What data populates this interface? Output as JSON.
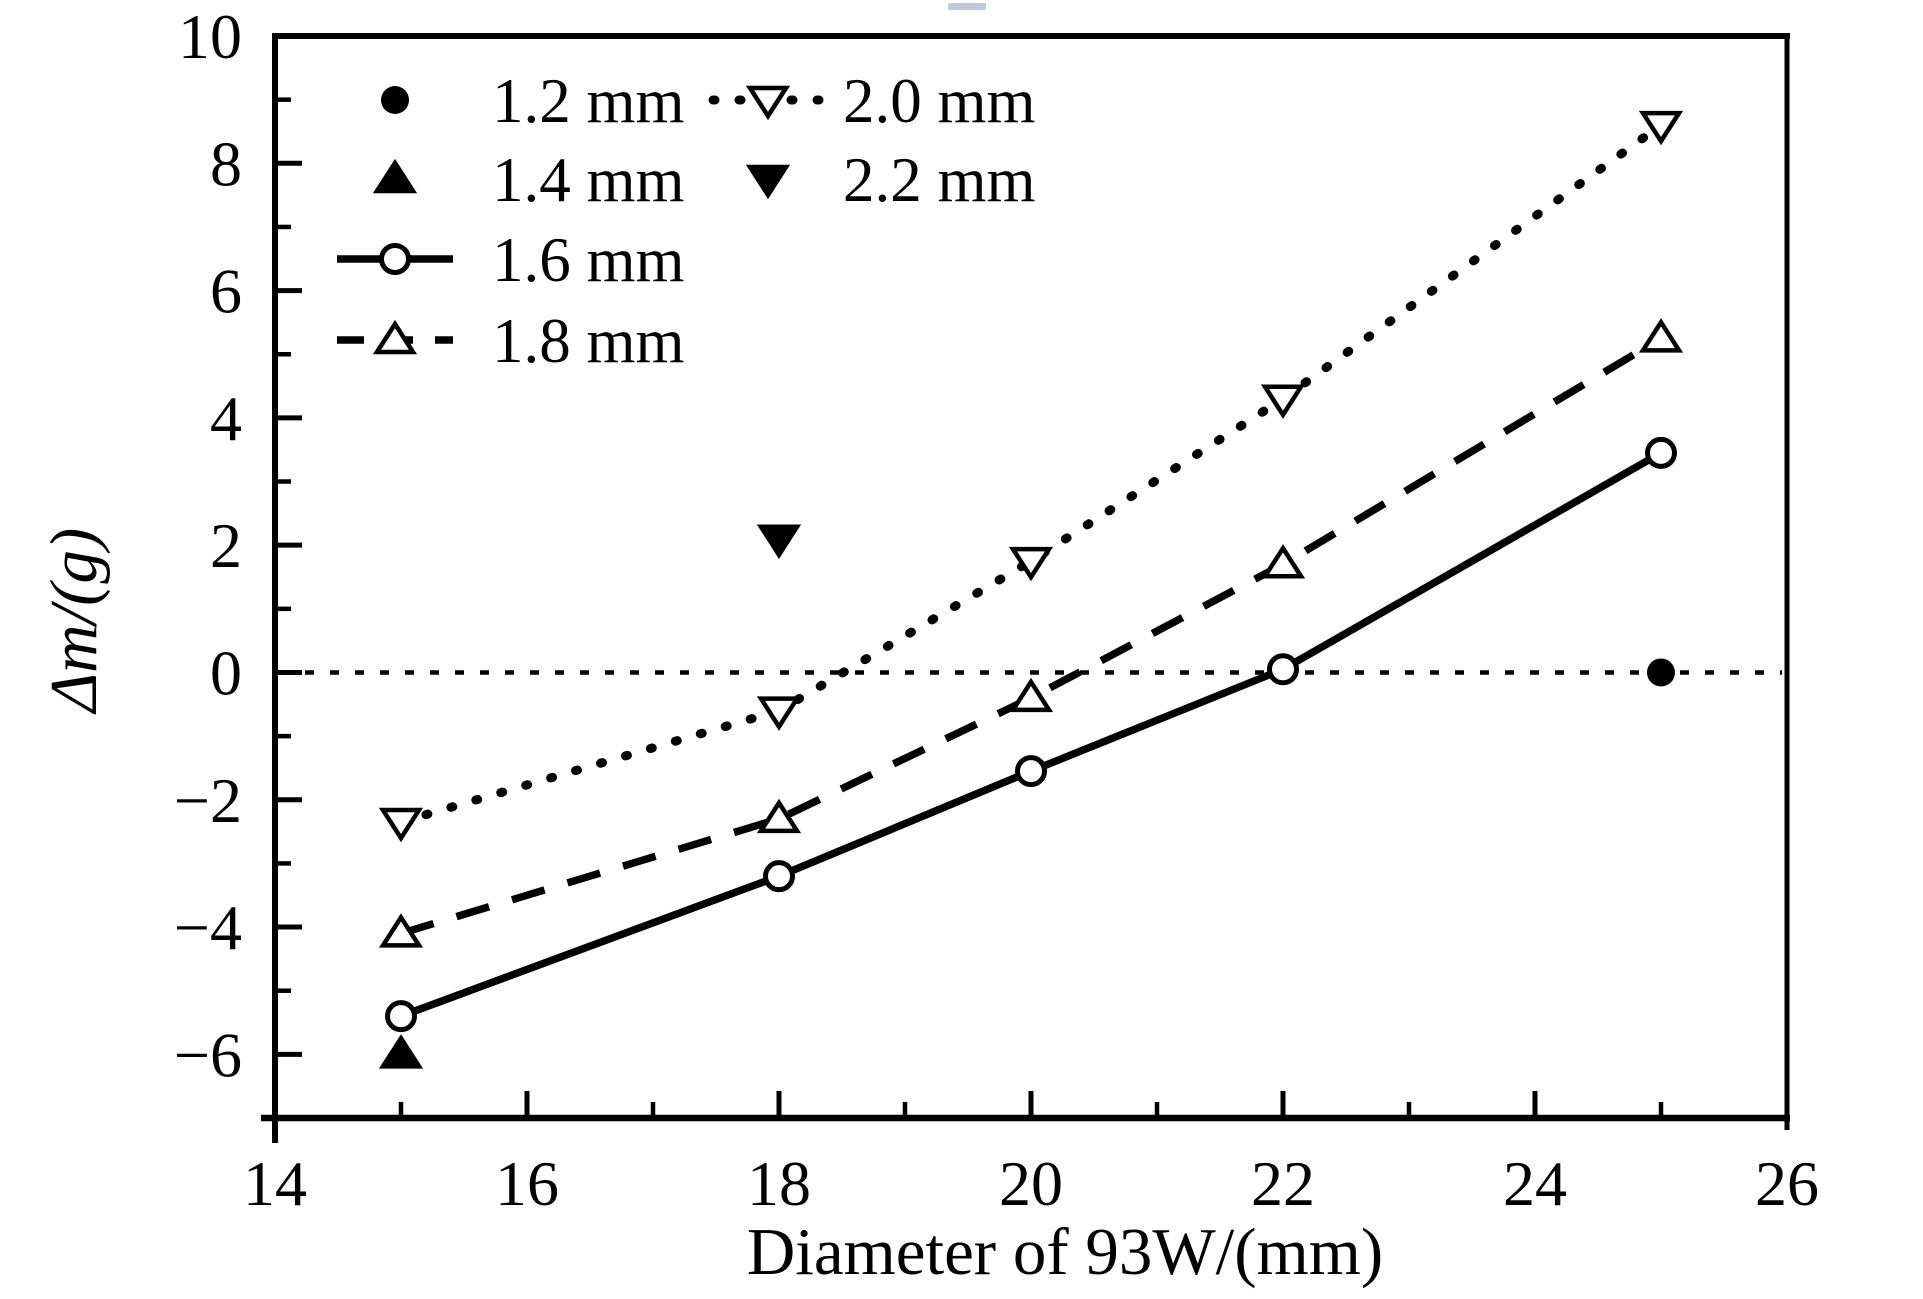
{
  "figure": {
    "background": "#ffffff",
    "ink_color": "#000000"
  },
  "chart_data": {
    "type": "line",
    "title": "",
    "xlabel": "Diameter of 93W/(mm)",
    "ylabel": "Δm/(g)",
    "xlim": [
      14,
      26
    ],
    "ylim": [
      -7,
      10
    ],
    "x_major_ticks": [
      14,
      16,
      18,
      20,
      22,
      24,
      26
    ],
    "x_minor_ticks": [
      15,
      17,
      19,
      21,
      23,
      25
    ],
    "y_major_ticks": [
      10,
      8,
      6,
      4,
      2,
      0,
      -2,
      -4,
      -6
    ],
    "y_minor_ticks": [
      9,
      7,
      5,
      3,
      1,
      -1,
      -3,
      -5
    ],
    "grid": false,
    "zero_reference_line": {
      "y": 0,
      "style": "dotted"
    },
    "legend_position": "top-left",
    "series": [
      {
        "name": "1.2 mm",
        "marker": "circle-filled",
        "line": "none",
        "legend_col": 0,
        "legend_row": 0,
        "points": [
          [
            25,
            0
          ]
        ]
      },
      {
        "name": "1.4 mm",
        "marker": "triangle-up-filled",
        "line": "none",
        "legend_col": 0,
        "legend_row": 1,
        "points": [
          [
            15,
            -6.0
          ]
        ]
      },
      {
        "name": "1.6 mm",
        "marker": "circle-open",
        "line": "solid",
        "legend_col": 0,
        "legend_row": 2,
        "points": [
          [
            15,
            -5.4
          ],
          [
            18,
            -3.2
          ],
          [
            20,
            -1.55
          ],
          [
            22,
            0.05
          ],
          [
            25,
            3.45
          ]
        ]
      },
      {
        "name": "1.8 mm",
        "marker": "triangle-up-open",
        "line": "dashed",
        "legend_col": 0,
        "legend_row": 3,
        "points": [
          [
            15,
            -4.1
          ],
          [
            18,
            -2.3
          ],
          [
            20,
            -0.4
          ],
          [
            22,
            1.7
          ],
          [
            25,
            5.25
          ]
        ]
      },
      {
        "name": "2.0 mm",
        "marker": "triangle-down-open",
        "line": "dotted",
        "legend_col": 1,
        "legend_row": 0,
        "points": [
          [
            15,
            -2.35
          ],
          [
            18,
            -0.6
          ],
          [
            20,
            1.75
          ],
          [
            22,
            4.3
          ],
          [
            25,
            8.6
          ]
        ]
      },
      {
        "name": "2.2 mm",
        "marker": "triangle-down-filled",
        "line": "none",
        "legend_col": 1,
        "legend_row": 1,
        "points": [
          [
            18,
            2.1
          ]
        ]
      }
    ]
  }
}
